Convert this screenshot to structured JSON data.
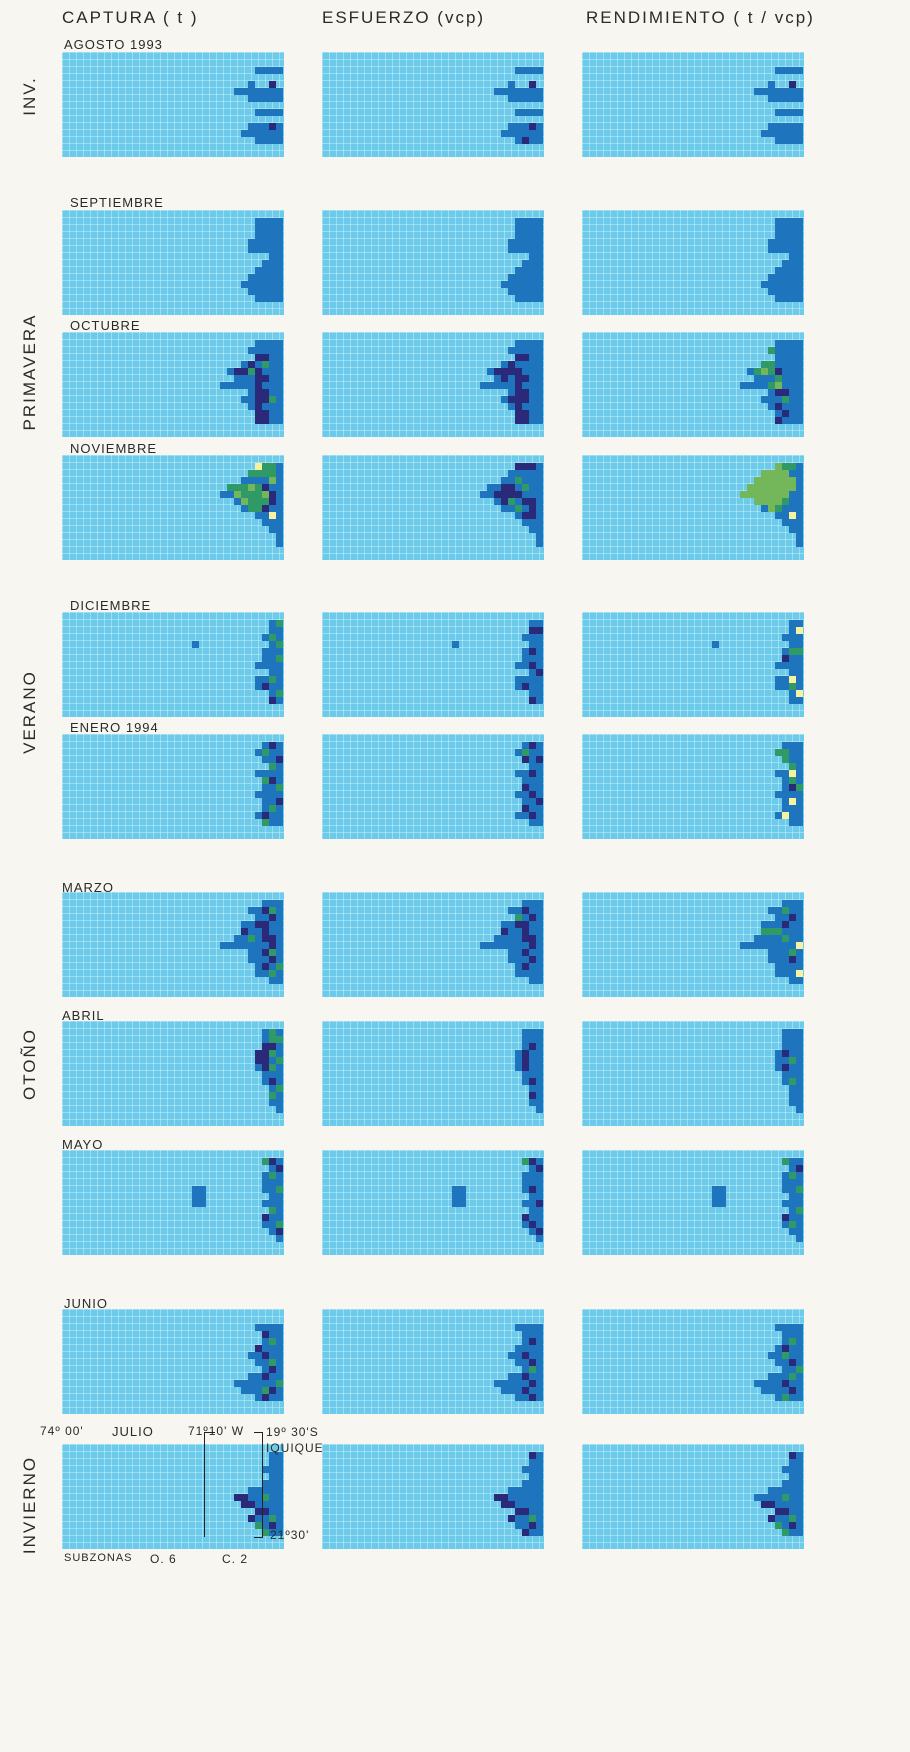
{
  "chart_data": {
    "type": "heatmap",
    "columns": [
      "CAPTURA ( t )",
      "ESFUERZO (vcp)",
      "RENDIMIENTO ( t / vcp)"
    ],
    "seasons": [
      {
        "label": "INV.",
        "rows": [
          0
        ]
      },
      {
        "label": "PRIMAVERA",
        "rows": [
          1,
          2,
          3
        ]
      },
      {
        "label": "VERANO",
        "rows": [
          4,
          5
        ]
      },
      {
        "label": "OTOÑO",
        "rows": [
          6,
          7,
          8
        ]
      },
      {
        "label": "INVIERNO",
        "rows": [
          9,
          10
        ]
      }
    ],
    "months": [
      "AGOSTO 1993",
      "SEPTIEMBRE",
      "OCTUBRE",
      "NOVIEMBRE",
      "DICIEMBRE",
      "ENERO 1994",
      "MARZO",
      "ABRIL",
      "MAYO",
      "JUNIO",
      "JULIO"
    ],
    "palette": {
      "background": "#6ccbea",
      "1": "#1e74bd",
      "2": "#2b2a7a",
      "3": "#2f9a66",
      "4": "#74b65a",
      "5": "#f6f2a0"
    },
    "patterns": [
      [
        "cl7 c24,3 c25,1 c26,1 c27,1 c28,1 c22,4 c23,4 c24,4 c25,4 c26,4 c27,4 c28,4 c24,5 c25,5 c26,5 c27,5 c28,5 c25,7 c26,7 c27,7 c28,7 c24,9 c25,9 c26,9 c27,9 c28,9 c23,10 c24,10 c25,10 c26,10 c27,10 c28,10 c25,11 c26,11 c27,11 c28,11 d27,3 d27,9",
        "cl7 c24,3 c25,1 c26,1 c27,1 c28,1 c22,4 c23,4 c24,4 c25,4 c26,4 c27,4 c28,4 c24,5 c25,5 c26,5 c27,5 c28,5 c25,7 c26,7 c27,7 c28,7 c24,9 c25,9 c26,9 c27,9 c28,9 c23,10 c24,10 c25,10 c26,10 c27,10 c28,10 c25,11 c26,11 c27,11 c28,11 d27,3 d27,9 d26,11",
        "cl7 c24,3 c25,1 c26,1 c27,1 c28,1 c22,4 c23,4 c24,4 c25,4 c26,4 c27,4 c28,4 c24,5 c25,5 c26,5 c27,5 c28,5 c25,7 c26,7 c27,7 c28,7 c24,9 c25,9 c26,9 c27,9 c28,9 c23,10 c24,10 c25,10 c26,10 c27,10 c28,10 c25,11 c26,11 c27,11 c28,11 d27,3"
      ],
      [
        "c25,0 c26,0 c27,0 c28,0 c25,1 c26,1 c27,1 c28,1 c25,2 c26,2 c27,2 c28,2 c24,3 c25,3 c26,3 c27,3 c28,3 c24,4 c25,4 c26,4 c27,4 c28,4 c27,5 c28,5 c26,6 c27,6 c28,6 c25,7 c26,7 c27,7 c28,7 c24,8 c25,8 c26,8 c27,8 c28,8 c23,9 c24,9 c25,9 c26,9 c27,9 c28,9 c24,10 c25,10 c26,10 c27,10 c28,10 c25,11 c26,11 c27,11 c28,11",
        "c25,0 c26,0 c27,0 c28,0 c25,1 c26,1 c27,1 c28,1 c25,2 c26,2 c27,2 c28,2 c24,3 c25,3 c26,3 c27,3 c28,3 c24,4 c25,4 c26,4 c27,4 c28,4 c27,5 c28,5 c26,6 c27,6 c28,6 c25,7 c26,7 c27,7 c28,7 c24,8 c25,8 c26,8 c27,8 c28,8 c23,9 c24,9 c25,9 c26,9 c27,9 c28,9 c24,10 c25,10 c26,10 c27,10 c28,10 c25,11 c26,11 c27,11 c28,11",
        "c25,0 c26,0 c27,0 c28,0 c25,1 c26,1 c27,1 c28,1 c25,2 c26,2 c27,2 c28,2 c24,3 c25,3 c26,3 c27,3 c28,3 c24,4 c25,4 c26,4 c27,4 c28,4 c27,5 c28,5 c26,6 c27,6 c28,6 c25,7 c26,7 c27,7 c28,7 c24,8 c25,8 c26,8 c27,8 c28,8 c23,9 c24,9 c25,9 c26,9 c27,9 c28,9 c24,10 c25,10 c26,10 c27,10 c28,10 c25,11 c26,11 c27,11 c28,11"
      ],
      [
        "c25,0 c26,0 c27,0 c28,0 c24,1 c25,1 c26,1 c27,1 c28,1 c25,2 c26,2 c27,2 c28,2 c23,3 c24,3 c25,3 c26,3 c27,3 c28,3 c21,4 c22,4 c23,4 c24,4 c25,4 c26,4 c27,4 c28,4 c22,5 c23,5 c24,5 c25,5 c26,5 c27,5 c28,5 c20,6 c21,6 c22,6 c23,6 c24,6 c25,6 c26,6 c27,6 c28,6 c24,7 c25,7 c26,7 c27,7 c28,7 c23,8 c24,8 c25,8 c26,8 c27,8 c28,8 c24,9 c25,9 c26,9 c27,9 c28,9 c25,10 c26,10 c27,10 c28,10 c25,11 c26,11 c27,11 c28,11 d25,2 d26,2 d24,3 d22,4 d23,4 d25,4 d25,5 d26,5 d25,6 d25,7 d26,7 d25,8 d26,8 d25,9 d25,10 d26,10 d25,11 d26,11 g24,4 g26,3 g27,8",
        "c25,0 c26,0 c27,0 c28,0 c24,1 c25,1 c26,1 c27,1 c28,1 c25,2 c26,2 c27,2 c28,2 c23,3 c24,3 c25,3 c26,3 c27,3 c28,3 c21,4 c22,4 c23,4 c24,4 c25,4 c26,4 c27,4 c28,4 c22,5 c23,5 c24,5 c25,5 c26,5 c27,5 c28,5 c20,6 c21,6 c22,6 c23,6 c24,6 c25,6 c26,6 c27,6 c28,6 c24,7 c25,7 c26,7 c27,7 c28,7 c23,8 c24,8 c25,8 c26,8 c27,8 c28,8 c24,9 c25,9 c26,9 c27,9 c28,9 c25,10 c26,10 c27,10 c28,10 c25,11 c26,11 c27,11 c28,11 d25,2 d26,2 d24,3 d22,4 d23,4 d25,4 d25,5 d26,5 d25,6 d25,7 d26,7 d25,8 d26,8 d25,9 d25,10 d26,10 d25,11 d26,11 d24,4 d23,5 d24,8",
        "c25,0 c26,0 c27,0 c28,0 c24,1 c25,1 c26,1 c27,1 c28,1 c25,2 c26,2 c27,2 c28,2 c23,3 c24,3 c25,3 c26,3 c27,3 c28,3 c21,4 c22,4 c23,4 c24,4 c25,4 c26,4 c27,4 c28,4 c22,5 c23,5 c24,5 c25,5 c26,5 c27,5 c28,5 c20,6 c21,6 c22,6 c23,6 c24,6 c25,6 c26,6 c27,6 c28,6 c24,7 c25,7 c26,7 c27,7 c28,7 c23,8 c24,8 c25,8 c26,8 c27,8 c28,8 c24,9 c25,9 c26,9 c27,9 c28,9 c25,10 c26,10 c27,10 c28,10 c25,11 c26,11 c27,11 c28,11 g24,1 g23,3 g24,3 g22,4 g23,4 g24,4 g25,5 g24,6 g26,8 d25,4 d25,7 d26,7 d25,9 d26,10 d25,11 e23,4 e25,6"
      ],
      [
        "c25,0 c26,0 c27,0 c28,0 c24,1 c25,1 c26,1 c27,1 c28,1 c23,2 c24,2 c25,2 c26,2 c27,2 c28,2 c21,3 c22,3 c23,3 c24,3 c25,3 c26,3 c27,3 c28,3 c20,4 c21,4 c22,4 c23,4 c24,4 c25,4 c26,4 c27,4 c28,4 c22,5 c23,5 c24,5 c25,5 c26,5 c27,5 c28,5 c23,6 c24,6 c25,6 c26,6 c27,6 c28,6 c25,7 c26,7 c27,7 c28,7 c26,8 c27,8 c28,8 c27,9 c28,9 c28,10 c28,11 g21,3 g22,3 g23,3 g24,3 g25,3 g22,4 g23,4 g24,4 g25,4 g23,5 g24,5 g25,5 g26,5 g24,6 g25,6 g26,0 g27,0 g24,1 g25,1 g26,1 g27,1 e22,4 e24,3 e23,5 e26,4 e27,2 y25,0 y27,7 d26,3 d27,4 d27,5 d26,6",
        "c25,0 c26,0 c27,0 c28,0 c24,1 c25,1 c26,1 c27,1 c28,1 c23,2 c24,2 c25,2 c26,2 c27,2 c28,2 c21,3 c22,3 c23,3 c24,3 c25,3 c26,3 c27,3 c28,3 c20,4 c21,4 c22,4 c23,4 c24,4 c25,4 c26,4 c27,4 c28,4 c22,5 c23,5 c24,5 c25,5 c26,5 c27,5 c28,5 c23,6 c24,6 c25,6 c26,6 c27,6 c28,6 c25,7 c26,7 c27,7 c28,7 c26,8 c27,8 c28,8 c27,9 c28,9 c28,10 c28,11 d25,0 d26,0 d27,0 d23,3 d24,3 d22,4 d23,4 d24,4 d25,4 d23,5 d26,5 d27,5 d27,6 d26,7 d27,7 g26,3 g25,2 g24,5 g25,6",
        "c25,0 c26,0 c27,0 c28,0 c24,1 c25,1 c26,1 c27,1 c28,1 c23,2 c24,2 c25,2 c26,2 c27,2 c28,2 c21,3 c22,3 c23,3 c24,3 c25,3 c26,3 c27,3 c28,3 c20,4 c21,4 c22,4 c23,4 c24,4 c25,4 c26,4 c27,4 c28,4 c22,5 c23,5 c24,5 c25,5 c26,5 c27,5 c28,5 c23,6 c24,6 c25,6 c26,6 c27,6 c28,6 c25,7 c26,7 c27,7 c28,7 c26,8 c27,8 c28,8 c27,9 c28,9 c28,10 c28,11 e20,4 e21,3 e21,4 e22,2 e22,3 e22,4 e22,5 e23,1 e23,2 e23,3 e23,4 e23,5 e24,1 e24,2 e24,3 e24,4 e24,5 e24,6 e25,0 e25,1 e25,2 e25,3 e25,4 e25,5 e26,1 e26,2 e26,3 e26,4 e27,2 e27,3 g26,0 g27,0 g26,5 g25,6 y27,7"
      ],
      [
        "c27,0 c28,0 c27,1 c28,1 c26,2 c27,2 c28,2 c27,3 c28,3 c26,4 c27,4 c28,4 c26,5 c27,5 c28,5 c25,6 c26,6 c27,6 c28,6 c27,7 c28,7 c25,8 c26,8 c27,8 c28,8 c25,9 c26,9 c27,9 c28,9 c27,10 c28,10 c27,11 c28,11 c16,3 g28,0 g27,2 g28,3 g28,5 g27,8 g28,10 d26,9 d27,11",
        "c27,0 c28,0 c27,1 c28,1 c26,2 c27,2 c28,2 c27,3 c28,3 c26,4 c27,4 c28,4 c26,5 c27,5 c28,5 c25,6 c26,6 c27,6 c28,6 c27,7 c28,7 c25,8 c26,8 c27,8 c28,8 c25,9 c26,9 c27,9 c28,9 c27,10 c28,10 c27,11 c28,11 c16,3 d27,1 d28,1 d27,4 d27,6 d28,7 d26,9 d27,11",
        "c27,0 c28,0 c27,1 c28,1 c26,2 c27,2 c28,2 c27,3 c28,3 c26,4 c27,4 c28,4 c26,5 c27,5 c28,5 c25,6 c26,6 c27,6 c28,6 c27,7 c28,7 c25,8 c26,8 c27,8 c28,8 c25,9 c26,9 c27,9 c28,9 c27,10 c28,10 c27,11 c28,11 c16,3 y28,1 y27,8 y28,10 g27,4 g28,4 g27,9 d26,5"
      ],
      [
        "c26,0 c27,0 c28,0 c25,1 c26,1 c27,1 c28,1 c26,2 c27,2 c28,2 c27,3 c28,3 c25,4 c26,4 c27,4 c28,4 c26,5 c27,5 c28,5 c26,6 c27,6 c28,6 c25,7 c26,7 c27,7 c28,7 c26,8 c27,8 c28,8 c26,9 c27,9 c28,9 c25,10 c26,10 c27,10 c28,10 c27,11 c28,11 g26,1 g27,3 g26,5 g28,6 g27,9 g26,11 d27,0 d28,2 d27,5 d28,8 d26,10",
        "c26,0 c27,0 c28,0 c25,1 c26,1 c27,1 c28,1 c26,2 c27,2 c28,2 c27,3 c28,3 c25,4 c26,4 c27,4 c28,4 c26,5 c27,5 c28,5 c26,6 c27,6 c28,6 c25,7 c26,7 c27,7 c28,7 c26,8 c27,8 c28,8 c26,9 c27,9 c28,9 c25,10 c26,10 c27,10 c28,10 c27,11 c28,11 d27,0 d26,2 d28,2 d27,4 d26,6 d27,7 d28,8 d26,9 d27,10 g26,1",
        "c26,0 c27,0 c28,0 c25,1 c26,1 c27,1 c28,1 c26,2 c27,2 c28,2 c27,3 c28,3 c25,4 c26,4 c27,4 c28,4 c26,5 c27,5 c28,5 c26,6 c27,6 c28,6 c25,7 c26,7 c27,7 c28,7 c26,8 c27,8 c28,8 c26,9 c27,9 c28,9 c25,10 c26,10 c27,10 c28,10 c27,11 c28,11 g25,1 g26,1 g26,2 g27,3 g27,5 g28,6 y27,4 y27,8 y26,10 d27,6"
      ],
      [
        "c26,0 c27,0 c28,0 c24,1 c25,1 c26,1 c27,1 c28,1 c25,2 c26,2 c27,2 c28,2 c23,3 c24,3 c25,3 c26,3 c27,3 c28,3 c24,4 c25,4 c26,4 c27,4 c28,4 c22,5 c23,5 c24,5 c25,5 c26,5 c27,5 c28,5 c20,6 c21,6 c22,6 c23,6 c24,6 c25,6 c26,6 c27,6 c28,6 c24,7 c25,7 c26,7 c27,7 c28,7 c24,8 c25,8 c26,8 c27,8 c28,8 c25,9 c26,9 c27,9 c28,9 c25,10 c26,10 c27,10 c28,10 c27,11 c28,11 d26,1 d27,2 d25,3 d26,3 d23,4 d26,4 d26,5 d27,5 d27,6 d26,7 d27,8 d26,9 g27,1 g24,5 g27,7 g28,9 g27,10",
        "c26,0 c27,0 c28,0 c24,1 c25,1 c26,1 c27,1 c28,1 c25,2 c26,2 c27,2 c28,2 c23,3 c24,3 c25,3 c26,3 c27,3 c28,3 c24,4 c25,4 c26,4 c27,4 c28,4 c22,5 c23,5 c24,5 c25,5 c26,5 c27,5 c28,5 c20,6 c21,6 c22,6 c23,6 c24,6 c25,6 c26,6 c27,6 c28,6 c24,7 c25,7 c26,7 c27,7 c28,7 c24,8 c25,8 c26,8 c27,8 c28,8 c25,9 c26,9 c27,9 c28,9 c25,10 c26,10 c27,10 c28,10 c27,11 c28,11 d26,1 d27,2 d25,3 d26,3 d23,4 d26,4 d26,5 d27,5 d27,6 d26,7 d27,8 d26,9 g25,2",
        "c26,0 c27,0 c28,0 c24,1 c25,1 c26,1 c27,1 c28,1 c25,2 c26,2 c27,2 c28,2 c23,3 c24,3 c25,3 c26,3 c27,3 c28,3 c24,4 c25,4 c26,4 c27,4 c28,4 c22,5 c23,5 c24,5 c25,5 c26,5 c27,5 c28,5 c20,6 c21,6 c22,6 c23,6 c24,6 c25,6 c26,6 c27,6 c28,6 c24,7 c25,7 c26,7 c27,7 c28,7 c24,8 c25,8 c26,8 c27,8 c28,8 c25,9 c26,9 c27,9 c28,9 c25,10 c26,10 c27,10 c28,10 c27,11 c28,11 g26,1 g23,4 g24,4 g25,4 g26,5 g27,7 d27,2 d26,3 d27,8 y28,6 y28,10"
      ],
      [
        "c26,0 c27,0 c28,0 c26,1 c27,1 c28,1 c26,2 c27,2 c28,2 c25,3 c26,3 c27,3 c28,3 c25,4 c26,4 c27,4 c28,4 c25,5 c26,5 c27,5 c28,5 c26,6 c27,6 c28,6 c26,7 c27,7 c28,7 c27,8 c28,8 c27,9 c28,9 c27,10 c28,10 c28,11 d26,2 d27,2 d25,3 d26,3 d25,4 d26,4 d26,5 d27,7 g27,0 g27,1 g28,1 g27,3 g28,4 g27,5 g28,8 g27,9",
        "c26,0 c27,0 c28,0 c26,1 c27,1 c28,1 c26,2 c27,2 c28,2 c25,3 c26,3 c27,3 c28,3 c25,4 c26,4 c27,4 c28,4 c25,5 c26,5 c27,5 c28,5 c26,6 c27,6 c28,6 c26,7 c27,7 c28,7 c27,8 c28,8 c27,9 c28,9 c27,10 c28,10 c28,11 d27,2 d26,3 d26,4 d26,5 d27,7 d27,9",
        "c26,0 c27,0 c28,0 c26,1 c27,1 c28,1 c26,2 c27,2 c28,2 c25,3 c26,3 c27,3 c28,3 c25,4 c26,4 c27,4 c28,4 c25,5 c26,5 c27,5 c28,5 c26,6 c27,6 c28,6 c26,7 c27,7 c28,7 c27,8 c28,8 c27,9 c28,9 c27,10 c28,10 c28,11 d26,3 d26,5 g27,4 g27,7"
      ],
      [
        "c26,0 c27,0 c28,0 c27,1 c28,1 c26,2 c27,2 c28,2 c26,3 c27,3 c28,3 c26,4 c27,4 c28,4 c27,5 c28,5 c26,6 c27,6 c28,6 c27,7 c28,7 c26,8 c27,8 c28,8 c26,9 c27,9 c28,9 c27,10 c28,10 c28,11 b16,4 b17,4 b16,5 b17,5 b16,6 b17,6 g26,0 g27,2 g28,4 g27,7 g28,9 d27,0 d28,1 d26,8 d28,10",
        "c26,0 c27,0 c28,0 c27,1 c28,1 c26,2 c27,2 c28,2 c26,3 c27,3 c28,3 c26,4 c27,4 c28,4 c27,5 c28,5 c26,6 c27,6 c28,6 c27,7 c28,7 c26,8 c27,8 c28,8 c26,9 c27,9 c28,9 c27,10 c28,10 c28,11 b16,4 b17,4 b16,5 b17,5 b16,6 b17,6 d27,0 d28,1 d27,4 d28,6 d26,8 d27,9 d28,10 g26,0",
        "c26,0 c27,0 c28,0 c27,1 c28,1 c26,2 c27,2 c28,2 c26,3 c27,3 c28,3 c26,4 c27,4 c28,4 c27,5 c28,5 c26,6 c27,6 c28,6 c27,7 c28,7 c26,8 c27,8 c28,8 c26,9 c27,9 c28,9 c27,10 c28,10 c28,11 b16,4 b17,4 b16,5 b17,5 b16,6 b17,6 g26,0 g27,2 g28,4 g28,7 g27,9 d28,1 d26,8"
      ],
      [
        "c25,1 c26,1 c27,1 c28,1 c26,2 c27,2 c28,2 c26,3 c27,3 c28,3 c25,4 c26,4 c27,4 c28,4 c24,5 c25,5 c26,5 c27,5 c28,5 c25,6 c26,6 c27,6 c28,6 c26,7 c27,7 c28,7 c24,8 c25,8 c26,8 c27,8 c28,8 c22,9 c23,9 c24,9 c25,9 c26,9 c27,9 c28,9 c23,10 c24,10 c25,10 c26,10 c27,10 c28,10 c25,11 c26,11 c27,11 c28,11 d26,2 d25,4 d26,5 d27,7 d26,8 d27,10 d26,11 g27,3 g27,6 g28,9 g26,10",
        "c25,1 c26,1 c27,1 c28,1 c26,2 c27,2 c28,2 c26,3 c27,3 c28,3 c25,4 c26,4 c27,4 c28,4 c24,5 c25,5 c26,5 c27,5 c28,5 c25,6 c26,6 c27,6 c28,6 c26,7 c27,7 c28,7 c24,8 c25,8 c26,8 c27,8 c28,8 c22,9 c23,9 c24,9 c25,9 c26,9 c27,9 c28,9 c23,10 c24,10 c25,10 c26,10 c27,10 c28,10 c25,11 c26,11 c27,11 c28,11 d27,3 d26,5 d27,6 d26,8 d27,9 d26,10 d27,11 g27,7",
        "c25,1 c26,1 c27,1 c28,1 c26,2 c27,2 c28,2 c26,3 c27,3 c28,3 c25,4 c26,4 c27,4 c28,4 c24,5 c25,5 c26,5 c27,5 c28,5 c25,6 c26,6 c27,6 c28,6 c26,7 c27,7 c28,7 c24,8 c25,8 c26,8 c27,8 c28,8 c22,9 c23,9 c24,9 c25,9 c26,9 c27,9 c28,9 c23,10 c24,10 c25,10 c26,10 c27,10 c28,10 c25,11 c26,11 c27,11 c28,11 d26,4 d27,6 d26,9 d27,10 g27,3 g26,5 g28,7 g27,8 g26,11"
      ],
      [
        "c27,0 c28,0 c27,1 c28,1 c26,2 c27,2 c28,2 c27,3 c28,3 c26,4 c27,4 c28,4 c24,5 c25,5 c26,5 c27,5 c28,5 c22,6 c23,6 c24,6 c25,6 c26,6 c27,6 c28,6 c23,7 c24,7 c25,7 c26,7 c27,7 c28,7 c25,8 c26,8 c27,8 c28,8 c24,9 c25,9 c26,9 c27,9 c28,9 c25,10 c26,10 c27,10 c28,10 c26,11 c27,11 c28,11 d22,6 d23,6 d23,7 d24,7 d25,8 d26,8 d24,9 d27,10 g25,10 g26,11 g27,9 g26,6",
        "c27,0 c28,0 c27,1 c28,1 c26,2 c27,2 c28,2 c27,3 c28,3 c26,4 c27,4 c28,4 c24,5 c25,5 c26,5 c27,5 c28,5 c22,6 c23,6 c24,6 c25,6 c26,6 c27,6 c28,6 c23,7 c24,7 c25,7 c26,7 c27,7 c28,7 c25,8 c26,8 c27,8 c28,8 c24,9 c25,9 c26,9 c27,9 c28,9 c25,10 c26,10 c27,10 c28,10 c26,11 c27,11 c28,11 d27,0 d22,6 d23,6 d23,7 d24,7 d25,8 d26,8 d24,9 d27,10 d26,11 g27,9",
        "c27,0 c28,0 c27,1 c28,1 c26,2 c27,2 c28,2 c27,3 c28,3 c26,4 c27,4 c28,4 c24,5 c25,5 c26,5 c27,5 c28,5 c22,6 c23,6 c24,6 c25,6 c26,6 c27,6 c28,6 c23,7 c24,7 c25,7 c26,7 c27,7 c28,7 c25,8 c26,8 c27,8 c28,8 c24,9 c25,9 c26,9 c27,9 c28,9 c25,10 c26,10 c27,10 c28,10 c26,11 c27,11 c28,11 d27,0 d23,7 d24,7 d25,8 d26,8 d24,9 d27,10 g25,10 g26,11 g27,9 g26,6"
      ]
    ]
  },
  "annotations": {
    "lon_west": "74º 00'",
    "lon_east": "71º10' W",
    "lat_north": "19º 30'S",
    "port": "IQUIQUE",
    "lat_south": "21º30'",
    "subzonas_label": "SUBZONAS",
    "subzona_a": "O. 6",
    "subzona_b": "C. 2"
  }
}
